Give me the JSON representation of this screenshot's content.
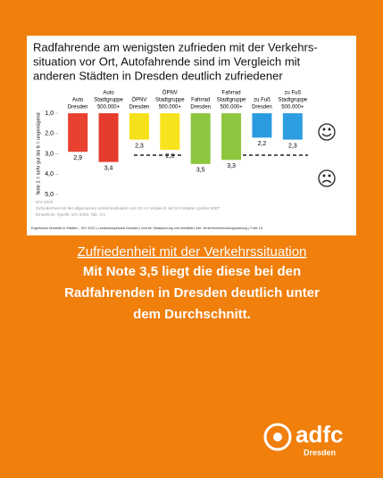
{
  "chart_data": {
    "type": "bar",
    "title_lines": [
      "Radfahrende am wenigsten zufrieden mit der Verkehrs-",
      "situation vor Ort, Autofahrende sind im Vergleich mit",
      "anderen Städten in Dresden deutlich zufriedener"
    ],
    "y_label": "Note 1 = sehr gut bis 6 = ungenügend",
    "categories": [
      [
        "Auto",
        "Dresden"
      ],
      [
        "Auto",
        "Stadtgruppe",
        "500.000+"
      ],
      [
        "ÖPNV",
        "Dresden"
      ],
      [
        "ÖPNV",
        "Stadtgruppe",
        "500.000+"
      ],
      [
        "Fahrrad",
        "Dresden"
      ],
      [
        "Fahrrad",
        "Stadtgruppe",
        "500.000+"
      ],
      [
        "zu Fuß",
        "Dresden"
      ],
      [
        "zu Fuß",
        "Stadtgruppe",
        "500.000+"
      ]
    ],
    "values": [
      2.9,
      3.4,
      2.3,
      2.8,
      3.5,
      3.3,
      2.2,
      2.3
    ],
    "value_labels": [
      "2,9",
      "3,4",
      "2,3",
      "2,8",
      "3,5",
      "3,3",
      "2,2",
      "2,3"
    ],
    "colors": [
      "#e8412f",
      "#e53b2c",
      "#f5e11a",
      "#f7e31c",
      "#8cc63f",
      "#8fc640",
      "#2b9be0",
      "#2e9de2"
    ],
    "ylim": [
      1,
      5
    ],
    "yticks": [
      {
        "value": 1,
        "label": "1,0"
      },
      {
        "value": 2,
        "label": "2,0"
      },
      {
        "value": 3,
        "label": "3,0"
      },
      {
        "value": 4,
        "label": "4,0"
      },
      {
        "value": 5,
        "label": "5,0"
      }
    ],
    "notes": [
      "SrV 2023",
      "Zufriedenheit mit der allgemeinen Verkehrssituation vor Ort im Vergleich mit SrV-Städten größer 500T",
      "Einwohner, Quelle: SrV 2023, Tab. 3.9"
    ],
    "footer": "Ergebnisse Mobilität in Städten - SrV 2023 | Landeshauptstadt Dresden | Amt für Stadtplanung und Mobilität | Abt. Verkehrsentwicklungsplanung | Folie 13"
  },
  "post": {
    "heading": "Zufriedenheit mit der Verkehrssituation",
    "body_lines": [
      "Mit Note 3,5 liegt die diese bei den",
      "Radfahrenden in Dresden deutlich unter",
      "dem Durchschnitt."
    ],
    "logo": "adfc",
    "logo_sub": "Dresden"
  }
}
